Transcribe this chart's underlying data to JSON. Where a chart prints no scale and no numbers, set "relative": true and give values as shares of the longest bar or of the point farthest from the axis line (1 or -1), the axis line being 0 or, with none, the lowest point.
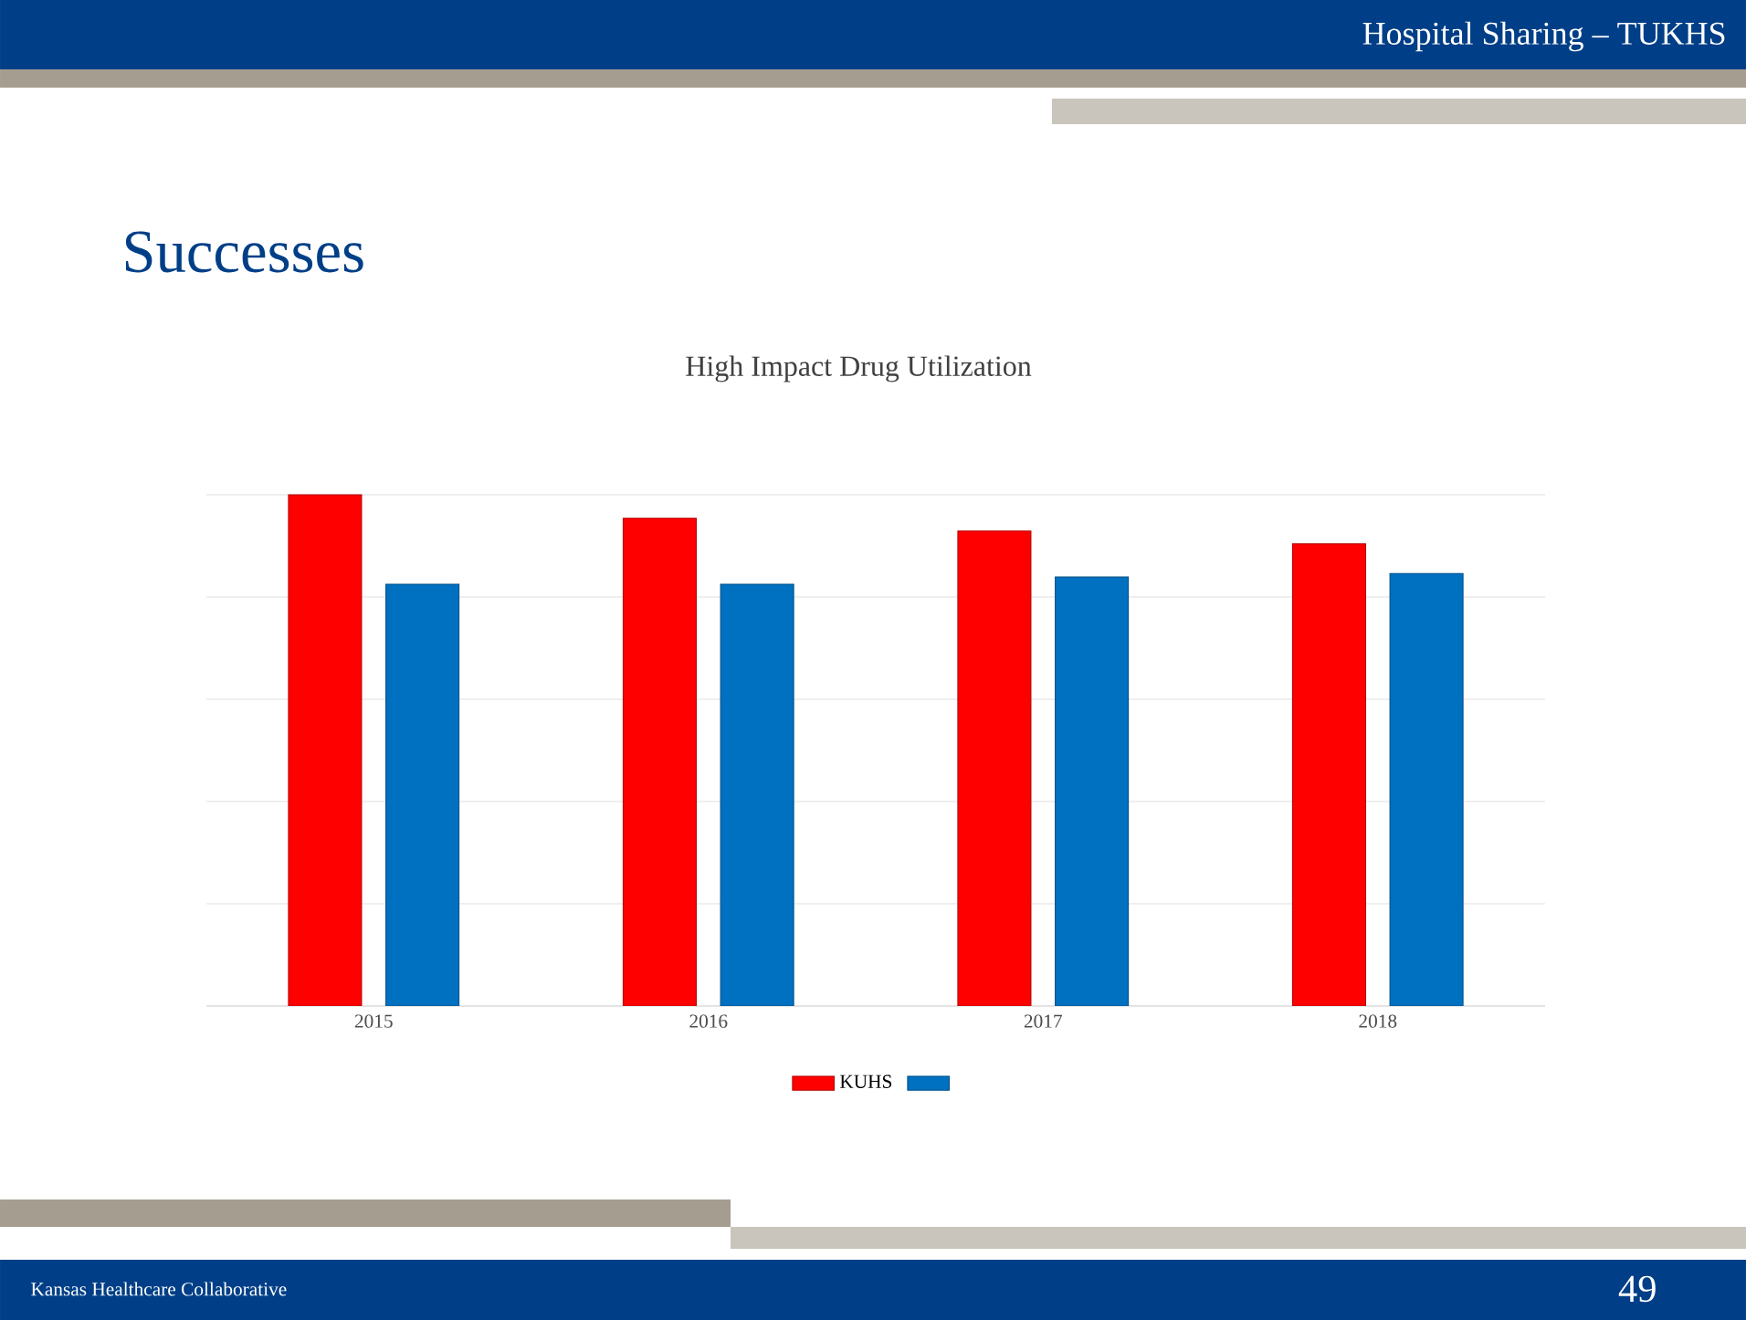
{
  "chart_data": {
    "type": "bar",
    "title": "High Impact Drug Utilization",
    "categories": [
      "2015",
      "2016",
      "2017",
      "2018"
    ],
    "relative": true,
    "series": [
      {
        "name": "KUHS",
        "color": "#ff0000",
        "values": [
          1,
          0.954,
          0.929,
          0.904
        ]
      },
      {
        "color": "#0070c0",
        "values": [
          0.825,
          0.825,
          0.839,
          0.846
        ]
      }
    ],
    "grid": "y",
    "legend": "bottom",
    "annotations": [
      "Hospital Sharing – TUKHS",
      "Successes",
      "Kansas Healthcare Collaborative",
      "49"
    ]
  }
}
